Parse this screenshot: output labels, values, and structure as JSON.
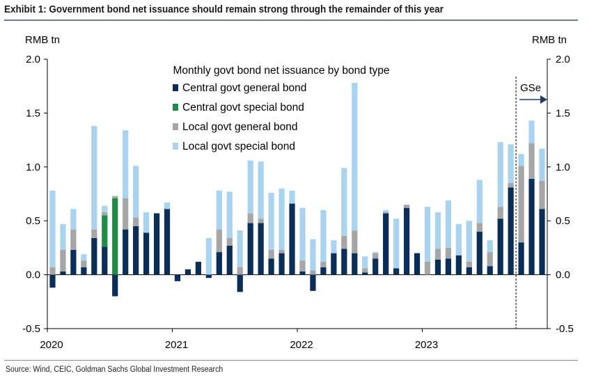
{
  "title": "Exhibit 1: Government bond net issuance should remain strong through the remainder of this year",
  "source": "Source: Wind, CEIC, Goldman Sachs Global Investment Research",
  "chart_data": {
    "type": "bar",
    "stacked": true,
    "subtitle": "Monthly govt bond net issuance by bond type",
    "y_left_label": "RMB tn",
    "y_right_label": "RMB tn",
    "ylim": [
      -0.5,
      2.0
    ],
    "yticks": [
      "2.0",
      "1.5",
      "1.0",
      "0.5",
      "0.0",
      "-0.5"
    ],
    "ytick_values": [
      2.0,
      1.5,
      1.0,
      0.5,
      0.0,
      -0.5
    ],
    "x_labels": [
      "2020",
      "2021",
      "2022",
      "2023"
    ],
    "grid": false,
    "legend_position": "top-center",
    "forecast_label": "GSe",
    "forecast_start_month_index": 45,
    "months": [
      "Jan-20",
      "Feb-20",
      "Mar-20",
      "Apr-20",
      "May-20",
      "Jun-20",
      "Jul-20",
      "Aug-20",
      "Sep-20",
      "Oct-20",
      "Nov-20",
      "Dec-20",
      "Jan-21",
      "Feb-21",
      "Mar-21",
      "Apr-21",
      "May-21",
      "Jun-21",
      "Jul-21",
      "Aug-21",
      "Sep-21",
      "Oct-21",
      "Nov-21",
      "Dec-21",
      "Jan-22",
      "Feb-22",
      "Mar-22",
      "Apr-22",
      "May-22",
      "Jun-22",
      "Jul-22",
      "Aug-22",
      "Sep-22",
      "Oct-22",
      "Nov-22",
      "Dec-22",
      "Jan-23",
      "Feb-23",
      "Mar-23",
      "Apr-23",
      "May-23",
      "Jun-23",
      "Jul-23",
      "Aug-23",
      "Sep-23",
      "Oct-23",
      "Nov-23",
      "Dec-23"
    ],
    "series": [
      {
        "name": "Central govt general bond",
        "color": "#0b2e59",
        "values": [
          -0.12,
          0.03,
          0.23,
          0.07,
          0.34,
          0.26,
          -0.2,
          0.42,
          0.45,
          0.39,
          0.57,
          0.61,
          -0.06,
          0.05,
          0.12,
          -0.03,
          0.21,
          0.27,
          -0.16,
          0.48,
          0.48,
          0.15,
          0.2,
          0.66,
          0.03,
          -0.15,
          0.07,
          0.2,
          0.24,
          0.2,
          0.02,
          0.15,
          0.57,
          0.06,
          0.62,
          0.2,
          0.0,
          0.14,
          0.15,
          0.18,
          0.07,
          0.4,
          0.08,
          0.52,
          0.81,
          0.3,
          0.89,
          0.61
        ]
      },
      {
        "name": "Central govt special bond",
        "color": "#1e8c45",
        "values": [
          0,
          0,
          0,
          0,
          0,
          0.29,
          0.71,
          0,
          0,
          0,
          0,
          0,
          0,
          0,
          0,
          0,
          0,
          0,
          0,
          0,
          0,
          0,
          0,
          0,
          0,
          0,
          0,
          0,
          0,
          0,
          0,
          0,
          0,
          0,
          0,
          0,
          0,
          0,
          0,
          0,
          0,
          0,
          0,
          0,
          0,
          0,
          0,
          0
        ]
      },
      {
        "name": "Local govt general bond",
        "color": "#a6a6a6",
        "values": [
          0.07,
          0.2,
          0.19,
          0.06,
          0.08,
          0.03,
          0.02,
          0.29,
          0.08,
          0.0,
          0.0,
          0.0,
          0.0,
          0.0,
          0.0,
          0.0,
          0.21,
          0.07,
          0.07,
          0.09,
          0.04,
          0.08,
          0.03,
          0.0,
          0.1,
          0.04,
          0.05,
          0.0,
          0.12,
          0.21,
          0.04,
          0.05,
          0.01,
          0.0,
          0.03,
          0.0,
          0.12,
          0.1,
          0.1,
          0.0,
          0.05,
          0.08,
          0.13,
          0.11,
          0.04,
          0.71,
          0.33,
          0.26
        ]
      },
      {
        "name": "Local govt special bond",
        "color": "#a9d3ef",
        "values": [
          0.71,
          0.24,
          0.19,
          0.06,
          0.96,
          0.06,
          0.0,
          0.63,
          0.48,
          0.19,
          0.0,
          0.06,
          0.0,
          0.0,
          0.0,
          0.34,
          0.36,
          0.43,
          0.34,
          0.49,
          0.53,
          0.53,
          0.57,
          0.12,
          0.49,
          0.29,
          0.48,
          0.12,
          0.63,
          1.37,
          0.11,
          0.01,
          0.02,
          0.46,
          0.0,
          0.0,
          0.51,
          0.34,
          0.44,
          0.29,
          0.38,
          0.4,
          0.11,
          0.6,
          0.36,
          0.11,
          0.21,
          0.3
        ]
      }
    ]
  }
}
